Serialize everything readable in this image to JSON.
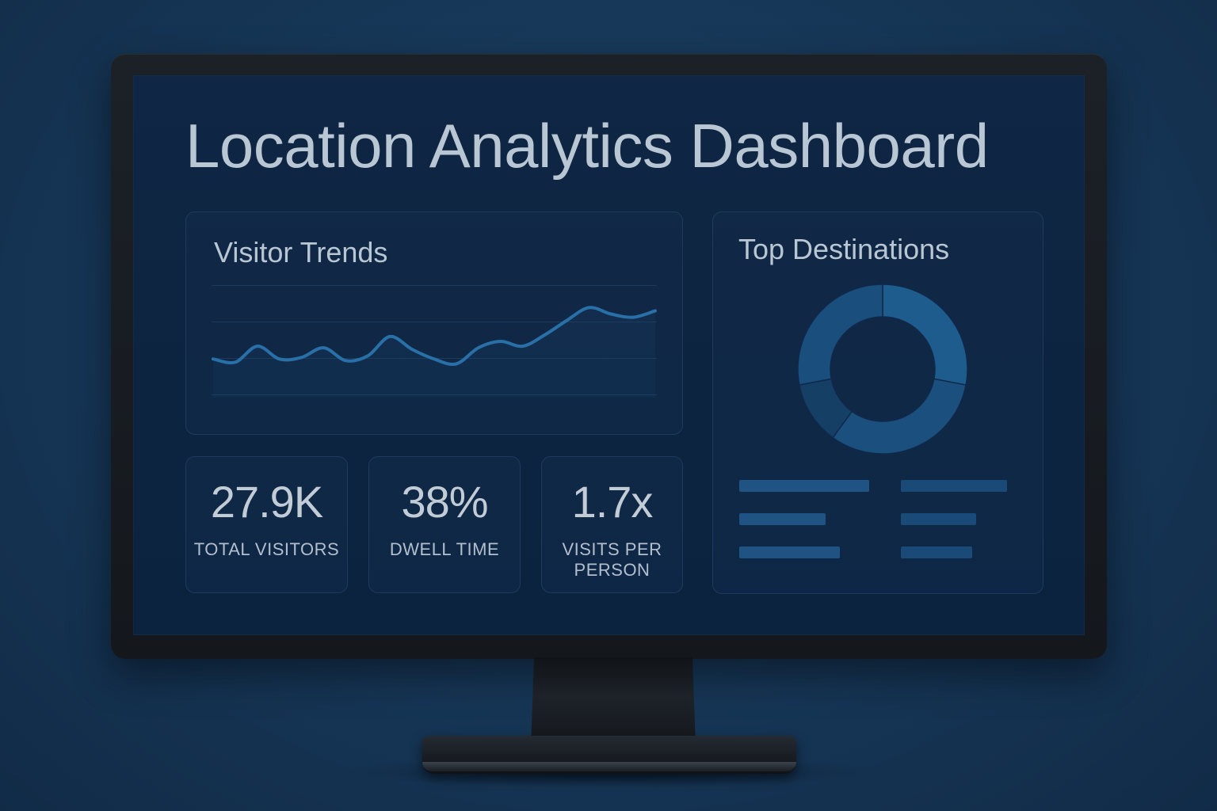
{
  "dashboard": {
    "title": "Location Analytics Dashboard"
  },
  "visitor_trends": {
    "title": "Visitor Trends"
  },
  "top_destinations": {
    "title": "Top Destinations"
  },
  "stats": [
    {
      "value": "27.9K",
      "label": "Total Visitors"
    },
    {
      "value": "38%",
      "label": "Dwell Time"
    },
    {
      "value": "1.7x",
      "label": "Visits per person"
    }
  ],
  "chart_data": [
    {
      "type": "line",
      "x": [
        0,
        1,
        2,
        3,
        4,
        5,
        6,
        7,
        8,
        9,
        10,
        11,
        12,
        13,
        14,
        15,
        16,
        17,
        18,
        19,
        20
      ],
      "y": [
        24,
        22,
        32,
        24,
        25,
        31,
        23,
        26,
        38,
        30,
        24,
        21,
        31,
        35,
        32,
        39,
        48,
        56,
        52,
        50,
        54
      ],
      "ylim": [
        0,
        70
      ],
      "grid": true,
      "color": "#2a70a8"
    },
    {
      "type": "pie",
      "values": [
        28,
        32,
        12,
        28
      ],
      "colors": [
        "#1f5c8e",
        "#1a4f7e",
        "#163f66",
        "#1a4e7c"
      ],
      "donut": true
    }
  ],
  "legend_placeholders": {
    "colors": [
      "#1e5384",
      "#1a4a77"
    ],
    "widths": [
      0.83,
      0.55,
      0.64,
      0.68,
      0.48,
      0.45
    ]
  },
  "colors": {
    "background": "#163656",
    "screen": "#0e2542",
    "card_border": "#1e3a5c",
    "text": "#b9c6d3",
    "accent": "#2a70a8"
  }
}
